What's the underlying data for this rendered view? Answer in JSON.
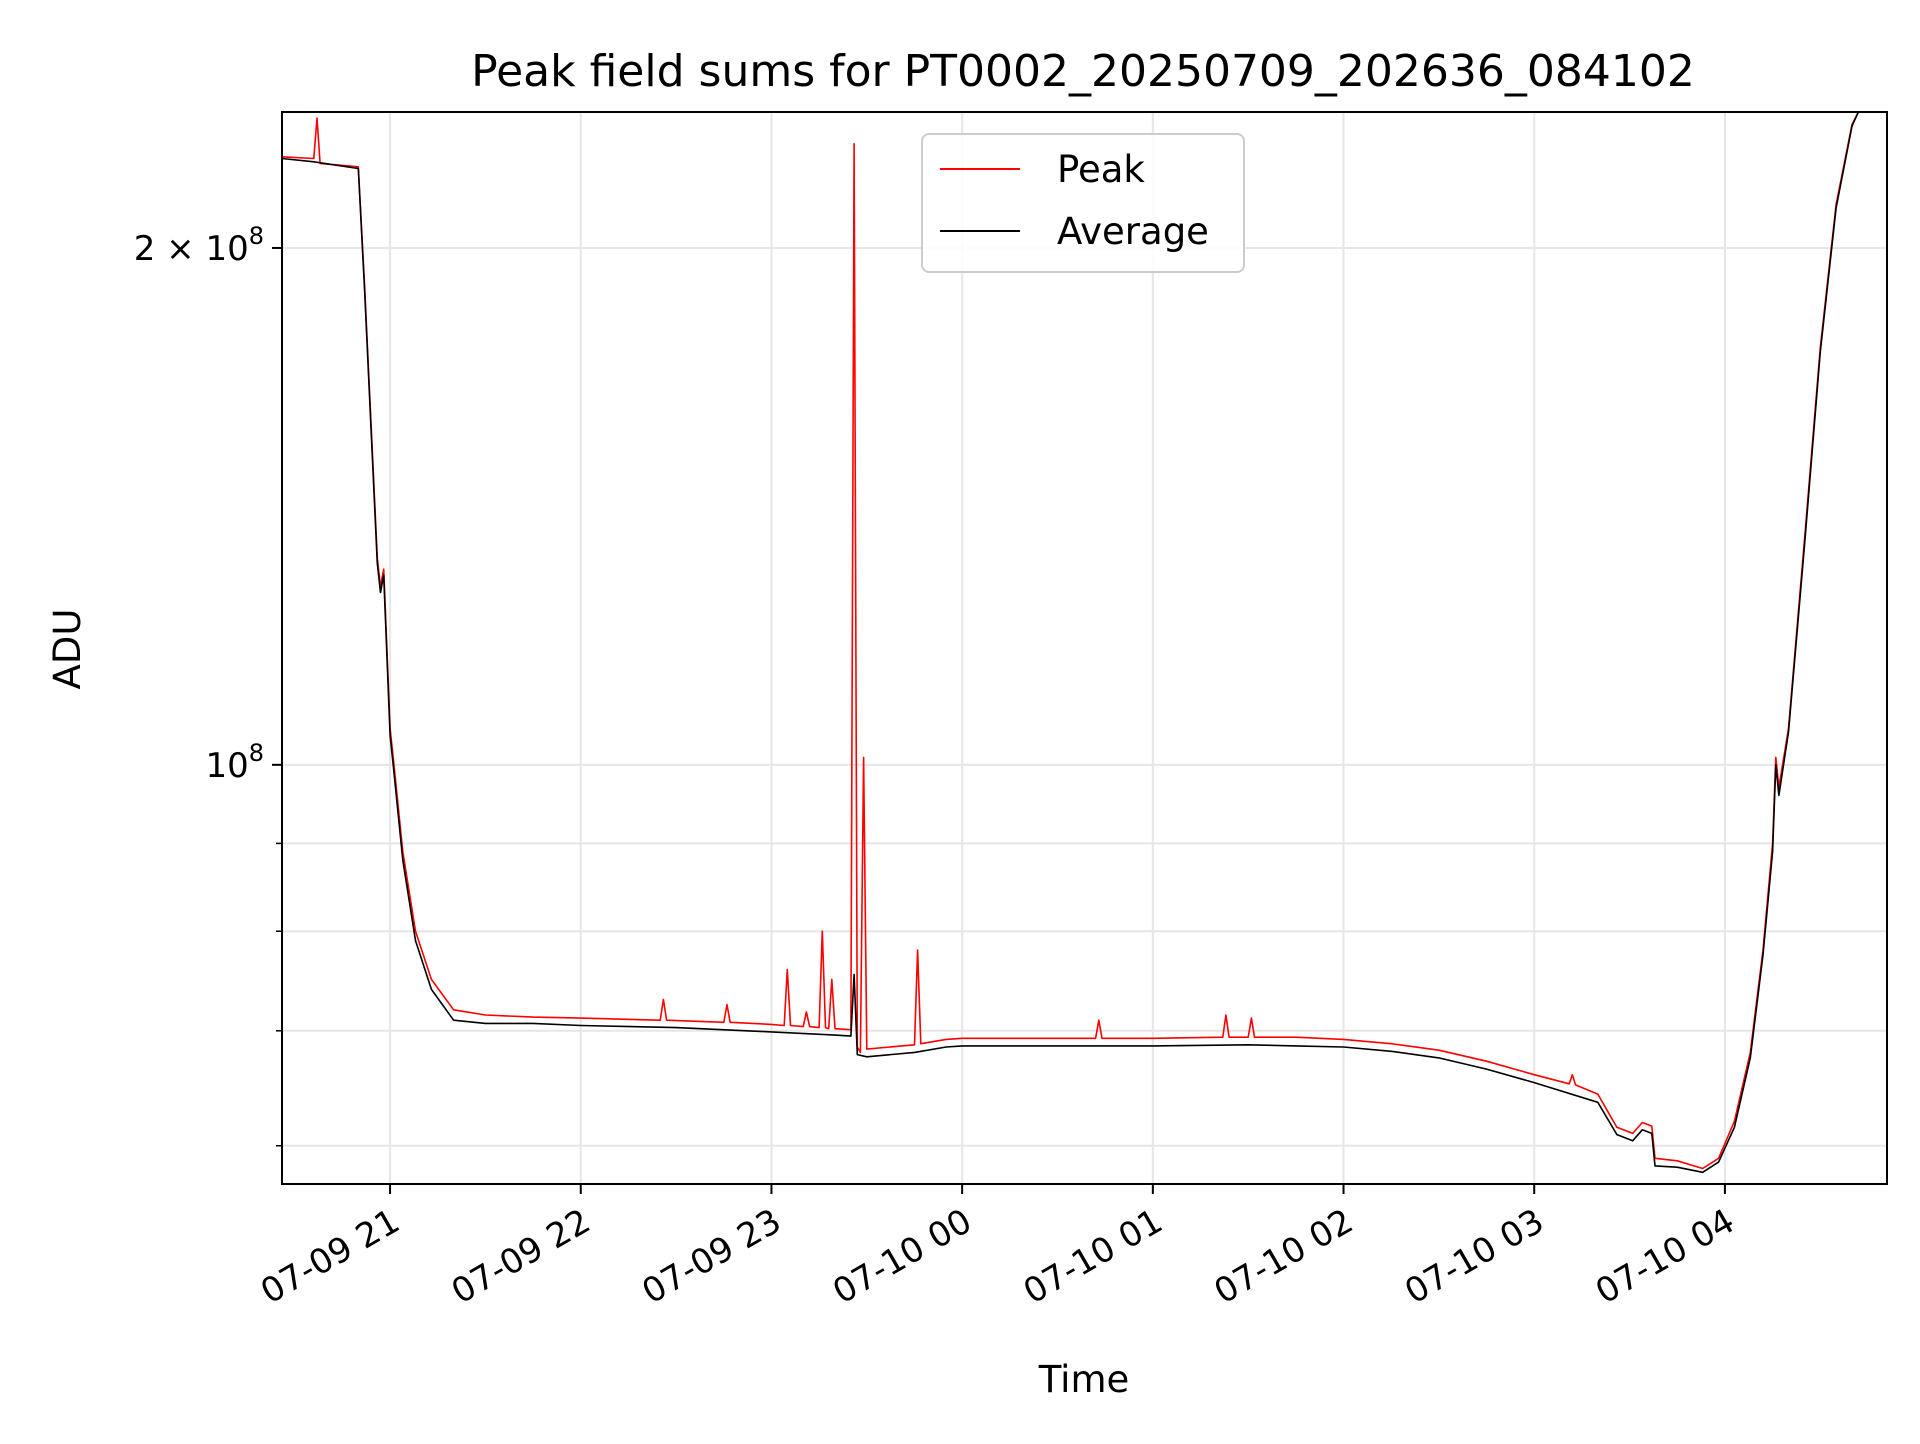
{
  "chart_data": {
    "type": "line",
    "title": "Peak field sums for PT0002_20250709_202636_084102",
    "xlabel": "Time",
    "ylabel": "ADU",
    "x_ticks": [
      {
        "x": "2025-07-09 21:00",
        "label": "07-09 21"
      },
      {
        "x": "2025-07-09 22:00",
        "label": "07-09 22"
      },
      {
        "x": "2025-07-09 23:00",
        "label": "07-09 23"
      },
      {
        "x": "2025-07-10 00:00",
        "label": "07-10 00"
      },
      {
        "x": "2025-07-10 01:00",
        "label": "07-10 01"
      },
      {
        "x": "2025-07-10 02:00",
        "label": "07-10 02"
      },
      {
        "x": "2025-07-10 03:00",
        "label": "07-10 03"
      },
      {
        "x": "2025-07-10 04:00",
        "label": "07-10 04"
      }
    ],
    "y_ticks": [
      {
        "y": 200000000,
        "base": "2 × 10",
        "exp": "8"
      },
      {
        "y": 100000000,
        "base": "10",
        "exp": "8"
      }
    ],
    "y_minor_ticks": [
      60000000,
      70000000,
      80000000,
      90000000
    ],
    "xlim": [
      "2025-07-09 20:26",
      "2025-07-10 04:51"
    ],
    "ylim": [
      57000000,
      240000000
    ],
    "y_scale": "log",
    "grid": true,
    "legend": {
      "placement": "upper center",
      "entries": [
        "Peak",
        "Average"
      ]
    },
    "series": [
      {
        "name": "Peak",
        "color": "#ff0000",
        "points": [
          [
            "2025-07-09 20:26",
            226000000
          ],
          [
            "2025-07-09 20:36",
            225500000
          ],
          [
            "2025-07-09 20:37",
            238000000
          ],
          [
            "2025-07-09 20:38",
            224000000
          ],
          [
            "2025-07-09 20:50",
            223000000
          ],
          [
            "2025-07-09 20:52",
            190000000
          ],
          [
            "2025-07-09 20:56",
            132000000
          ],
          [
            "2025-07-09 20:57",
            127000000
          ],
          [
            "2025-07-09 20:58",
            130000000
          ],
          [
            "2025-07-09 21:00",
            105000000
          ],
          [
            "2025-07-09 21:01",
            101000000
          ],
          [
            "2025-07-09 21:04",
            89000000
          ],
          [
            "2025-07-09 21:08",
            80000000
          ],
          [
            "2025-07-09 21:13",
            75000000
          ],
          [
            "2025-07-09 21:20",
            72000000
          ],
          [
            "2025-07-09 21:30",
            71500000
          ],
          [
            "2025-07-09 21:45",
            71300000
          ],
          [
            "2025-07-09 22:00",
            71200000
          ],
          [
            "2025-07-09 22:25",
            71000000
          ],
          [
            "2025-07-09 22:26",
            73000000
          ],
          [
            "2025-07-09 22:27",
            71000000
          ],
          [
            "2025-07-09 22:45",
            70800000
          ],
          [
            "2025-07-09 22:46",
            72500000
          ],
          [
            "2025-07-09 22:47",
            70800000
          ],
          [
            "2025-07-09 23:00",
            70600000
          ],
          [
            "2025-07-09 23:04",
            70500000
          ],
          [
            "2025-07-09 23:05",
            76000000
          ],
          [
            "2025-07-09 23:06",
            70500000
          ],
          [
            "2025-07-09 23:10",
            70400000
          ],
          [
            "2025-07-09 23:11",
            71800000
          ],
          [
            "2025-07-09 23:12",
            70400000
          ],
          [
            "2025-07-09 23:15",
            70300000
          ],
          [
            "2025-07-09 23:16",
            80000000
          ],
          [
            "2025-07-09 23:17",
            70300000
          ],
          [
            "2025-07-09 23:18",
            70200000
          ],
          [
            "2025-07-09 23:19",
            75000000
          ],
          [
            "2025-07-09 23:20",
            70200000
          ],
          [
            "2025-07-09 23:25",
            70100000
          ],
          [
            "2025-07-09 23:26",
            230000000
          ],
          [
            "2025-07-09 23:27",
            68500000
          ],
          [
            "2025-07-09 23:28",
            68000000
          ],
          [
            "2025-07-09 23:29",
            101000000
          ],
          [
            "2025-07-09 23:30",
            68300000
          ],
          [
            "2025-07-09 23:45",
            68700000
          ],
          [
            "2025-07-09 23:46",
            78000000
          ],
          [
            "2025-07-09 23:47",
            68800000
          ],
          [
            "2025-07-09 23:55",
            69200000
          ],
          [
            "2025-07-10 00:00",
            69300000
          ],
          [
            "2025-07-10 00:30",
            69300000
          ],
          [
            "2025-07-10 00:42",
            69300000
          ],
          [
            "2025-07-10 00:43",
            71000000
          ],
          [
            "2025-07-10 00:44",
            69300000
          ],
          [
            "2025-07-10 01:00",
            69300000
          ],
          [
            "2025-07-10 01:22",
            69400000
          ],
          [
            "2025-07-10 01:23",
            71500000
          ],
          [
            "2025-07-10 01:24",
            69400000
          ],
          [
            "2025-07-10 01:30",
            69400000
          ],
          [
            "2025-07-10 01:31",
            71200000
          ],
          [
            "2025-07-10 01:32",
            69400000
          ],
          [
            "2025-07-10 01:45",
            69400000
          ],
          [
            "2025-07-10 02:00",
            69200000
          ],
          [
            "2025-07-10 02:15",
            68800000
          ],
          [
            "2025-07-10 02:30",
            68200000
          ],
          [
            "2025-07-10 02:45",
            67200000
          ],
          [
            "2025-07-10 03:00",
            66000000
          ],
          [
            "2025-07-10 03:11",
            65200000
          ],
          [
            "2025-07-10 03:12",
            66000000
          ],
          [
            "2025-07-10 03:13",
            65100000
          ],
          [
            "2025-07-10 03:20",
            64300000
          ],
          [
            "2025-07-10 03:26",
            61500000
          ],
          [
            "2025-07-10 03:31",
            61000000
          ],
          [
            "2025-07-10 03:34",
            61900000
          ],
          [
            "2025-07-10 03:37",
            61600000
          ],
          [
            "2025-07-10 03:38",
            59000000
          ],
          [
            "2025-07-10 03:45",
            58800000
          ],
          [
            "2025-07-10 03:53",
            58200000
          ],
          [
            "2025-07-10 03:58",
            59000000
          ],
          [
            "2025-07-10 04:03",
            62000000
          ],
          [
            "2025-07-10 04:08",
            68000000
          ],
          [
            "2025-07-10 04:12",
            78000000
          ],
          [
            "2025-07-10 04:15",
            90000000
          ],
          [
            "2025-07-10 04:16",
            101000000
          ],
          [
            "2025-07-10 04:17",
            97000000
          ],
          [
            "2025-07-10 04:20",
            105000000
          ],
          [
            "2025-07-10 04:25",
            135000000
          ],
          [
            "2025-07-10 04:30",
            175000000
          ],
          [
            "2025-07-10 04:35",
            212000000
          ],
          [
            "2025-07-10 04:40",
            236000000
          ],
          [
            "2025-07-10 04:42",
            240000000
          ]
        ]
      },
      {
        "name": "Average",
        "color": "#000000",
        "points": [
          [
            "2025-07-09 20:26",
            225500000
          ],
          [
            "2025-07-09 20:36",
            224500000
          ],
          [
            "2025-07-09 20:50",
            222500000
          ],
          [
            "2025-07-09 20:52",
            189000000
          ],
          [
            "2025-07-09 20:56",
            131000000
          ],
          [
            "2025-07-09 20:57",
            126000000
          ],
          [
            "2025-07-09 20:58",
            129000000
          ],
          [
            "2025-07-09 21:00",
            104000000
          ],
          [
            "2025-07-09 21:01",
            100000000
          ],
          [
            "2025-07-09 21:04",
            88000000
          ],
          [
            "2025-07-09 21:08",
            79000000
          ],
          [
            "2025-07-09 21:13",
            74000000
          ],
          [
            "2025-07-09 21:20",
            71000000
          ],
          [
            "2025-07-09 21:30",
            70700000
          ],
          [
            "2025-07-09 21:45",
            70700000
          ],
          [
            "2025-07-09 22:00",
            70500000
          ],
          [
            "2025-07-09 22:30",
            70300000
          ],
          [
            "2025-07-09 23:00",
            69900000
          ],
          [
            "2025-07-09 23:20",
            69600000
          ],
          [
            "2025-07-09 23:25",
            69500000
          ],
          [
            "2025-07-09 23:26",
            75500000
          ],
          [
            "2025-07-09 23:27",
            67800000
          ],
          [
            "2025-07-09 23:30",
            67600000
          ],
          [
            "2025-07-09 23:45",
            68000000
          ],
          [
            "2025-07-09 23:55",
            68500000
          ],
          [
            "2025-07-10 00:00",
            68600000
          ],
          [
            "2025-07-10 00:30",
            68600000
          ],
          [
            "2025-07-10 01:00",
            68600000
          ],
          [
            "2025-07-10 01:30",
            68700000
          ],
          [
            "2025-07-10 01:45",
            68600000
          ],
          [
            "2025-07-10 02:00",
            68500000
          ],
          [
            "2025-07-10 02:15",
            68100000
          ],
          [
            "2025-07-10 02:30",
            67500000
          ],
          [
            "2025-07-10 02:45",
            66500000
          ],
          [
            "2025-07-10 03:00",
            65300000
          ],
          [
            "2025-07-10 03:20",
            63600000
          ],
          [
            "2025-07-10 03:26",
            60900000
          ],
          [
            "2025-07-10 03:31",
            60400000
          ],
          [
            "2025-07-10 03:34",
            61300000
          ],
          [
            "2025-07-10 03:37",
            61000000
          ],
          [
            "2025-07-10 03:38",
            58400000
          ],
          [
            "2025-07-10 03:45",
            58300000
          ],
          [
            "2025-07-10 03:53",
            57900000
          ],
          [
            "2025-07-10 03:58",
            58700000
          ],
          [
            "2025-07-10 04:03",
            61500000
          ],
          [
            "2025-07-10 04:08",
            67500000
          ],
          [
            "2025-07-10 04:12",
            77500000
          ],
          [
            "2025-07-10 04:15",
            89000000
          ],
          [
            "2025-07-10 04:16",
            100000000
          ],
          [
            "2025-07-10 04:17",
            96000000
          ],
          [
            "2025-07-10 04:20",
            104500000
          ],
          [
            "2025-07-10 04:25",
            134000000
          ],
          [
            "2025-07-10 04:30",
            174000000
          ],
          [
            "2025-07-10 04:35",
            211000000
          ],
          [
            "2025-07-10 04:40",
            235500000
          ],
          [
            "2025-07-10 04:42",
            240000000
          ]
        ]
      }
    ]
  }
}
